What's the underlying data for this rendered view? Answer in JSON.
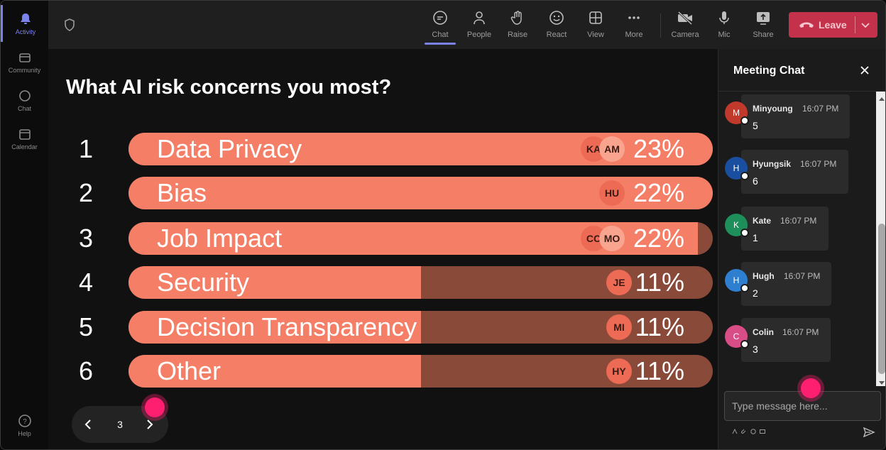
{
  "rail": {
    "items": [
      {
        "label": "Activity",
        "icon": "bell-icon"
      },
      {
        "label": "Community",
        "icon": "community-icon"
      },
      {
        "label": "Chat",
        "icon": "chat-icon"
      },
      {
        "label": "Calendar",
        "icon": "calendar-icon"
      }
    ],
    "help": {
      "label": "Help",
      "icon": "help-icon"
    }
  },
  "toolbar": {
    "items": [
      {
        "label": "Chat",
        "icon": "chat-icon"
      },
      {
        "label": "People",
        "icon": "people-icon"
      },
      {
        "label": "Raise",
        "icon": "raise-hand-icon"
      },
      {
        "label": "React",
        "icon": "react-icon"
      },
      {
        "label": "View",
        "icon": "view-icon"
      },
      {
        "label": "More",
        "icon": "more-icon"
      },
      {
        "label": "Camera",
        "icon": "camera-off-icon"
      },
      {
        "label": "Mic",
        "icon": "mic-icon"
      },
      {
        "label": "Share",
        "icon": "share-icon"
      }
    ],
    "leave_label": "Leave"
  },
  "poll": {
    "question": "What AI risk concerns you most?",
    "options": [
      {
        "rank": "1",
        "label": "Data Privacy",
        "percent": "23%",
        "fill_fraction": 1.0,
        "voters": [
          "KA",
          "AM"
        ]
      },
      {
        "rank": "2",
        "label": "Bias",
        "percent": "22%",
        "fill_fraction": 1.0,
        "voters": [
          "HU"
        ]
      },
      {
        "rank": "3",
        "label": "Job Impact",
        "percent": "22%",
        "fill_fraction": 0.975,
        "voters": [
          "CC",
          "MO"
        ]
      },
      {
        "rank": "4",
        "label": "Security",
        "percent": "11%",
        "fill_fraction": 0.5,
        "voters": [
          "JE"
        ]
      },
      {
        "rank": "5",
        "label": "Decision Transparency",
        "percent": "11%",
        "fill_fraction": 0.5,
        "voters": [
          "MI"
        ]
      },
      {
        "rank": "6",
        "label": "Other",
        "percent": "11%",
        "fill_fraction": 0.5,
        "voters": [
          "HY"
        ]
      }
    ],
    "page": "3"
  },
  "chat": {
    "title": "Meeting Chat",
    "messages": [
      {
        "initial": "M",
        "name": "Minyoung",
        "time": "16:07 PM",
        "text": "5",
        "color": "#c0392b"
      },
      {
        "initial": "H",
        "name": "Hyungsik",
        "time": "16:07 PM",
        "text": "6",
        "color": "#1a4fa0"
      },
      {
        "initial": "K",
        "name": "Kate",
        "time": "16:07 PM",
        "text": "1",
        "color": "#1e8e5a"
      },
      {
        "initial": "H",
        "name": "Hugh",
        "time": "16:07 PM",
        "text": "2",
        "color": "#2f7fd0"
      },
      {
        "initial": "C",
        "name": "Colin",
        "time": "16:07 PM",
        "text": "3",
        "color": "#d94d86"
      }
    ],
    "placeholder": "Type message here..."
  },
  "colors": {
    "bar_fill": "#f47f66",
    "bar_track": "#8a4a3a",
    "leave": "#c4314b",
    "accent": "#7b83eb",
    "cursor": "#ff1f71"
  }
}
